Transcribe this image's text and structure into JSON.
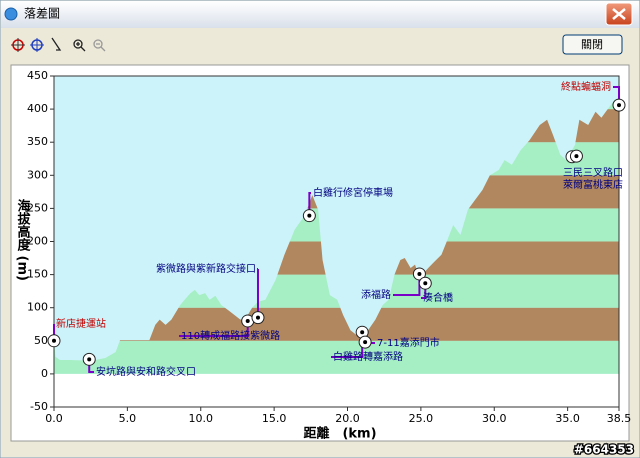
{
  "window": {
    "title": "落差圖",
    "close_button": "關閉",
    "watermark": "#664353"
  },
  "chart_data": {
    "type": "area",
    "x_label": "距離　(km)",
    "y_label": "海拔高度 (m)",
    "x": [
      0,
      0.1,
      0.4,
      1.1,
      2.3,
      2.8,
      3.5,
      4.2,
      4.5,
      5.2,
      6.5,
      6.9,
      7.2,
      7.6,
      8.0,
      8.6,
      8.9,
      9.3,
      9.6,
      9.9,
      10.3,
      10.6,
      11.0,
      11.4,
      12.0,
      12.7,
      13.1,
      13.5,
      13.9,
      14.4,
      15.1,
      15.7,
      16.4,
      17.1,
      17.6,
      18.0,
      18.3,
      18.8,
      19.3,
      19.7,
      20.2,
      20.6,
      21.0,
      21.4,
      21.9,
      22.4,
      22.8,
      23.2,
      23.6,
      23.9,
      24.3,
      24.6,
      24.9,
      25.5,
      25.9,
      26.4,
      26.8,
      27.2,
      27.7,
      28.2,
      28.7,
      29.2,
      29.7,
      30.3,
      30.7,
      31.2,
      31.8,
      32.4,
      33.1,
      33.6,
      34.0,
      34.5,
      34.9,
      35.5,
      35.8,
      36.4,
      36.9,
      37.3,
      37.8,
      38.2,
      38.5
    ],
    "values": [
      51,
      26,
      21,
      21,
      20,
      21,
      24,
      33,
      51,
      51,
      51,
      74,
      82,
      74,
      82,
      104,
      112,
      122,
      127,
      119,
      122,
      112,
      118,
      104,
      94,
      82,
      85,
      100,
      109,
      112,
      142,
      180,
      218,
      240,
      270,
      248,
      172,
      119,
      112,
      89,
      66,
      59,
      51,
      66,
      82,
      104,
      112,
      150,
      172,
      175,
      160,
      165,
      145,
      160,
      169,
      180,
      202,
      225,
      210,
      248,
      263,
      278,
      300,
      308,
      323,
      316,
      338,
      353,
      376,
      384,
      361,
      331,
      323,
      346,
      384,
      376,
      396,
      387,
      402,
      414,
      417
    ],
    "xlim": [
      0,
      38.5
    ],
    "ylim": [
      -50,
      450
    ],
    "xticks": [
      {
        "value": 0,
        "label": "0.0"
      },
      {
        "value": 5,
        "label": "5.0"
      },
      {
        "value": 10,
        "label": "10.0"
      },
      {
        "value": 15,
        "label": "15.0"
      },
      {
        "value": 20,
        "label": "20.0"
      },
      {
        "value": 25,
        "label": "25.0"
      },
      {
        "value": 30,
        "label": "30.0"
      },
      {
        "value": 35,
        "label": "35.0"
      },
      38.5
    ],
    "yticks": [
      -50,
      0,
      50,
      100,
      150,
      200,
      250,
      300,
      350,
      400,
      450
    ],
    "colors": {
      "sky": "#cdf3fa",
      "band_a": "#a6efc4",
      "band_b": "#b1875f",
      "leader": "#7a00c8"
    },
    "annotations": [
      {
        "label": "新店捷運站",
        "x": 0,
        "y": 50,
        "color": "#c00000"
      },
      {
        "label": "安坑路與安和路交叉口",
        "x": 2.4,
        "y": 22,
        "color": "#000080"
      },
      {
        "label": "110轉成福路接紫微路",
        "x": 13.2,
        "y": 80,
        "color": "#000080"
      },
      {
        "label": "紫微路與紫新路交接口",
        "x": 13.9,
        "y": 85,
        "color": "#000080"
      },
      {
        "label": "白雞行修宮停車場",
        "x": 17.4,
        "y": 239,
        "color": "#000080"
      },
      {
        "label": "白雞路轉嘉添路",
        "x": 21.0,
        "y": 63,
        "color": "#000080"
      },
      {
        "label": "7-11嘉添門市",
        "x": 21.2,
        "y": 48,
        "color": "#000080"
      },
      {
        "label": "添福路",
        "x": 24.9,
        "y": 151,
        "color": "#000080"
      },
      {
        "label": "湊合橋",
        "x": 25.3,
        "y": 137,
        "color": "#000080"
      },
      {
        "label": "三民三叉路口",
        "x": 35.3,
        "y": 328,
        "color": "#000080"
      },
      {
        "label": "萊爾富桃東店",
        "x": 35.6,
        "y": 329,
        "color": "#000080"
      },
      {
        "label": "終點蝙蝠洞",
        "x": 38.5,
        "y": 406,
        "color": "#c00000"
      }
    ]
  }
}
